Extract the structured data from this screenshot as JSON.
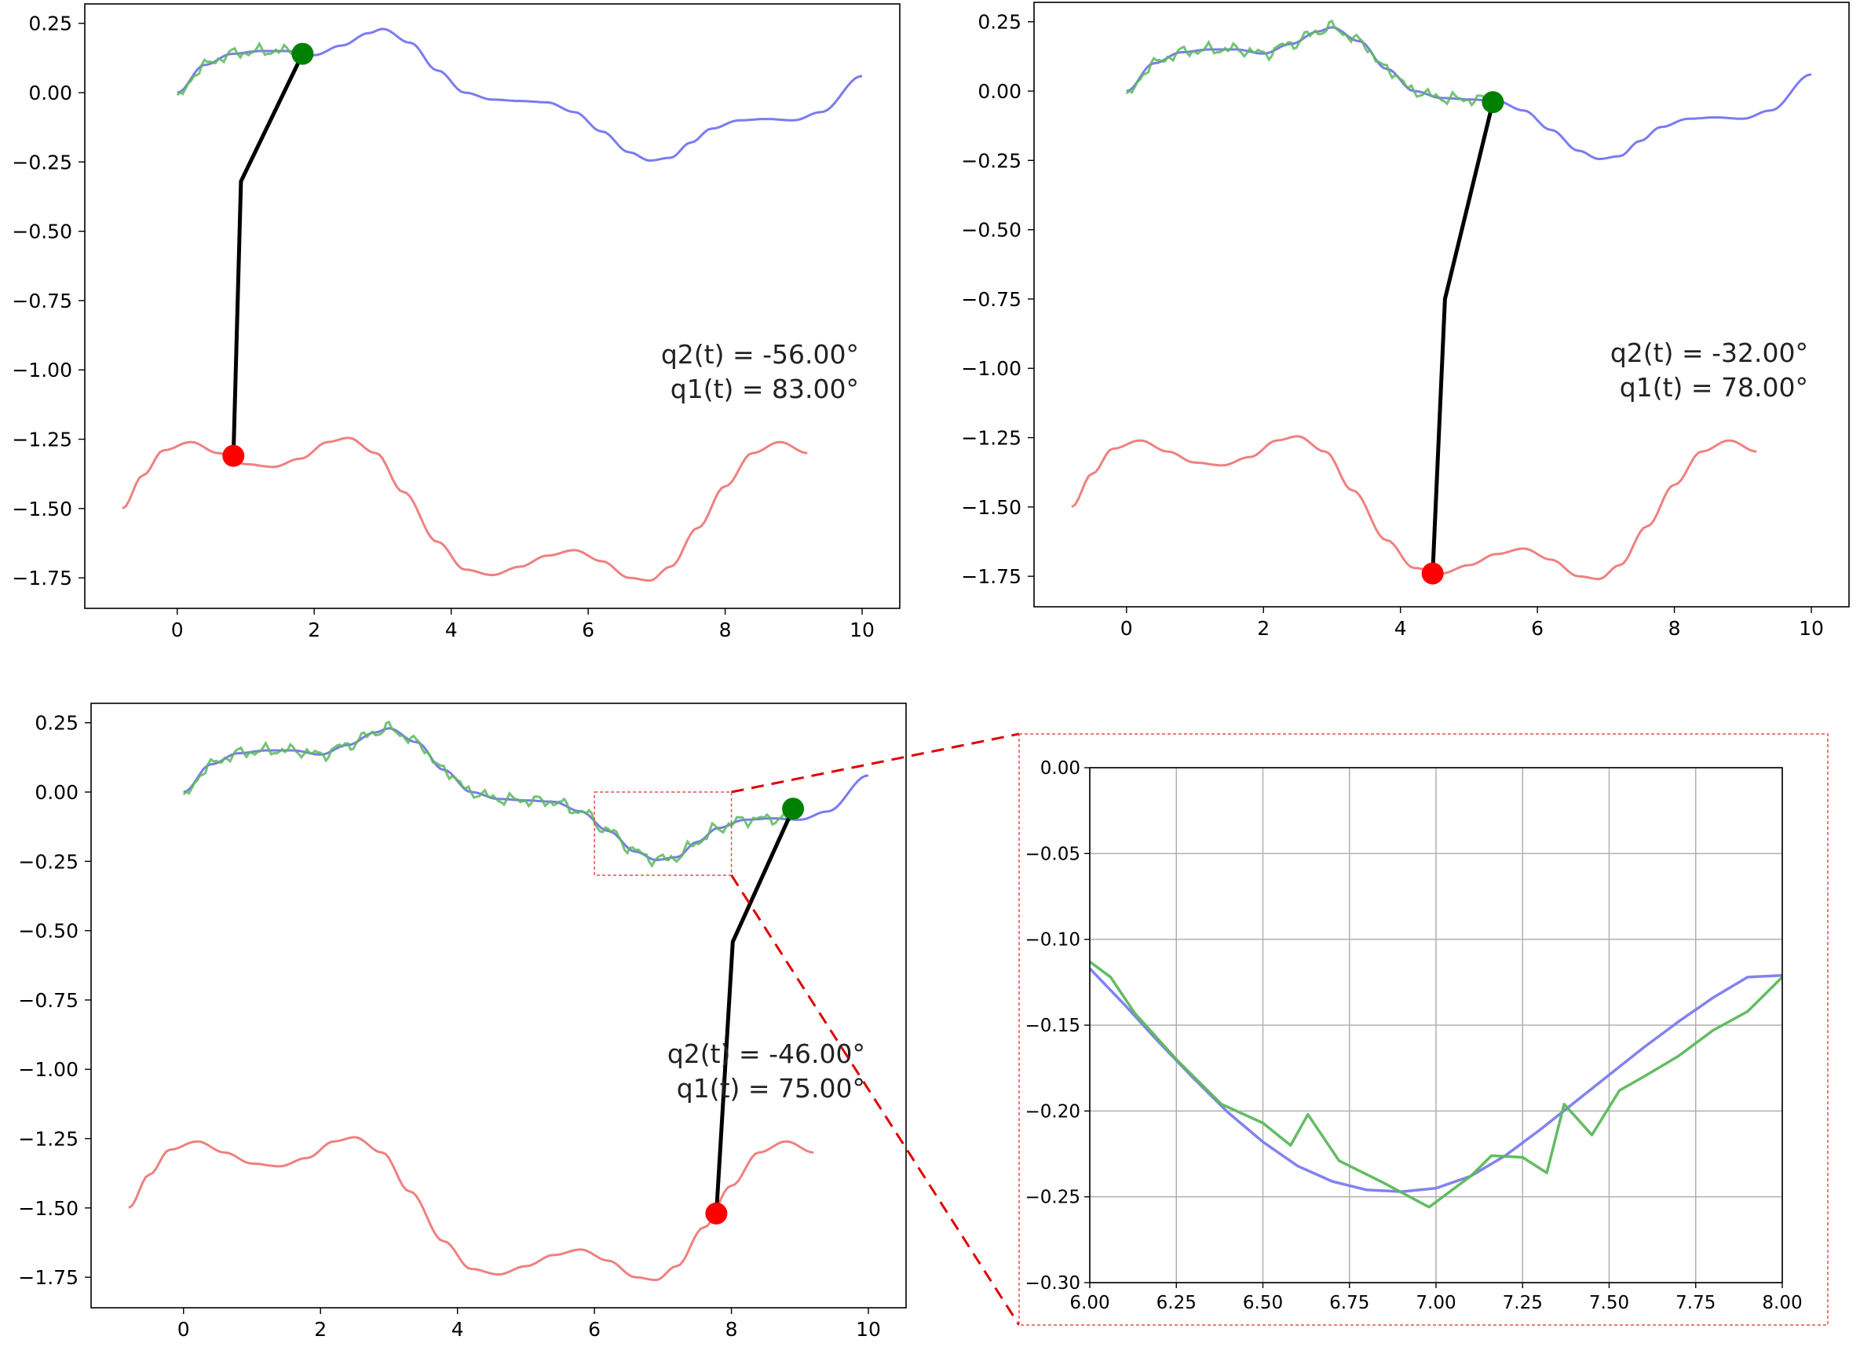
{
  "colors": {
    "background": "#ffffff",
    "upper_reference": "#7b7bf0",
    "lower_reference": "#f08080",
    "tracked_path": "#5cb85c",
    "arm_link": "#000000",
    "end_effector": "#008000",
    "base_joint": "#ff0000",
    "zoom_box": "#e05050",
    "zoom_grid": "#b0b0b0"
  },
  "chart_data": [
    {
      "id": "panel-top-left",
      "type": "line",
      "xlim": [
        -1.35,
        10.55
      ],
      "ylim": [
        -1.86,
        0.32
      ],
      "x_ticks": [
        "0",
        "2",
        "4",
        "6",
        "8",
        "10"
      ],
      "y_ticks": [
        "0.25",
        "0.00",
        "−0.25",
        "−0.50",
        "−0.75",
        "−1.00",
        "−1.25",
        "−1.50",
        "−1.75"
      ],
      "traced_until_x": 1.83,
      "arm": {
        "base": [
          0.82,
          -1.31
        ],
        "elbow": [
          0.93,
          -0.32
        ],
        "tip": [
          1.83,
          0.14
        ]
      },
      "annotations": [
        "q2(t) = -56.00°",
        "q1(t) = 83.00°"
      ],
      "grid": false
    },
    {
      "id": "panel-top-right",
      "type": "line",
      "xlim": [
        -1.35,
        10.55
      ],
      "ylim": [
        -1.86,
        0.32
      ],
      "x_ticks": [
        "0",
        "2",
        "4",
        "6",
        "8",
        "10"
      ],
      "y_ticks": [
        "0.25",
        "0.00",
        "−0.25",
        "−0.50",
        "−0.75",
        "−1.00",
        "−1.25",
        "−1.50",
        "−1.75"
      ],
      "traced_until_x": 5.35,
      "arm": {
        "base": [
          4.47,
          -1.74
        ],
        "elbow": [
          4.65,
          -0.75
        ],
        "tip": [
          5.35,
          -0.04
        ]
      },
      "annotations": [
        "q2(t) = -32.00°",
        "q1(t) = 78.00°"
      ],
      "grid": false
    },
    {
      "id": "panel-bottom-left",
      "type": "line",
      "xlim": [
        -1.35,
        10.55
      ],
      "ylim": [
        -1.86,
        0.32
      ],
      "x_ticks": [
        "0",
        "2",
        "4",
        "6",
        "8",
        "10"
      ],
      "y_ticks": [
        "0.25",
        "0.00",
        "−0.25",
        "−0.50",
        "−0.75",
        "−1.00",
        "−1.25",
        "−1.50",
        "−1.75"
      ],
      "traced_until_x": 8.9,
      "arm": {
        "base": [
          7.78,
          -1.52
        ],
        "elbow": [
          8.02,
          -0.54
        ],
        "tip": [
          8.9,
          -0.06
        ]
      },
      "annotations": [
        "q2(t) = -46.00°",
        "q1(t) = 75.00°"
      ],
      "zoom_region": {
        "x": [
          6.0,
          8.0
        ],
        "y": [
          -0.3,
          0.0
        ]
      },
      "grid": false
    },
    {
      "id": "panel-zoom",
      "type": "line",
      "xlim": [
        6.0,
        8.0
      ],
      "ylim": [
        -0.3,
        0.0
      ],
      "x_ticks": [
        "6.00",
        "6.25",
        "6.50",
        "6.75",
        "7.00",
        "7.25",
        "7.50",
        "7.75",
        "8.00"
      ],
      "y_ticks": [
        "0.00",
        "−0.05",
        "−0.10",
        "−0.15",
        "−0.20",
        "−0.25",
        "−0.30"
      ],
      "grid": true,
      "series": [
        {
          "x": [
            6.0,
            6.1,
            6.2,
            6.3,
            6.4,
            6.5,
            6.6,
            6.7,
            6.8,
            6.9,
            7.0,
            7.1,
            7.2,
            7.3,
            7.4,
            7.5,
            7.6,
            7.7,
            7.8,
            7.9,
            8.0
          ],
          "y": [
            -0.117,
            -0.138,
            -0.16,
            -0.181,
            -0.201,
            -0.218,
            -0.232,
            -0.241,
            -0.246,
            -0.247,
            -0.245,
            -0.238,
            -0.226,
            -0.211,
            -0.195,
            -0.179,
            -0.163,
            -0.148,
            -0.134,
            -0.122,
            -0.121
          ]
        },
        {
          "x": [
            6.0,
            6.06,
            6.13,
            6.25,
            6.38,
            6.5,
            6.58,
            6.63,
            6.72,
            6.85,
            6.98,
            7.1,
            7.16,
            7.25,
            7.32,
            7.37,
            7.45,
            7.53,
            7.6,
            7.7,
            7.8,
            7.9,
            8.0
          ],
          "y": [
            -0.113,
            -0.122,
            -0.143,
            -0.17,
            -0.196,
            -0.207,
            -0.22,
            -0.202,
            -0.229,
            -0.242,
            -0.256,
            -0.238,
            -0.226,
            -0.227,
            -0.236,
            -0.196,
            -0.214,
            -0.188,
            -0.18,
            -0.168,
            -0.153,
            -0.142,
            -0.122
          ]
        }
      ]
    }
  ]
}
